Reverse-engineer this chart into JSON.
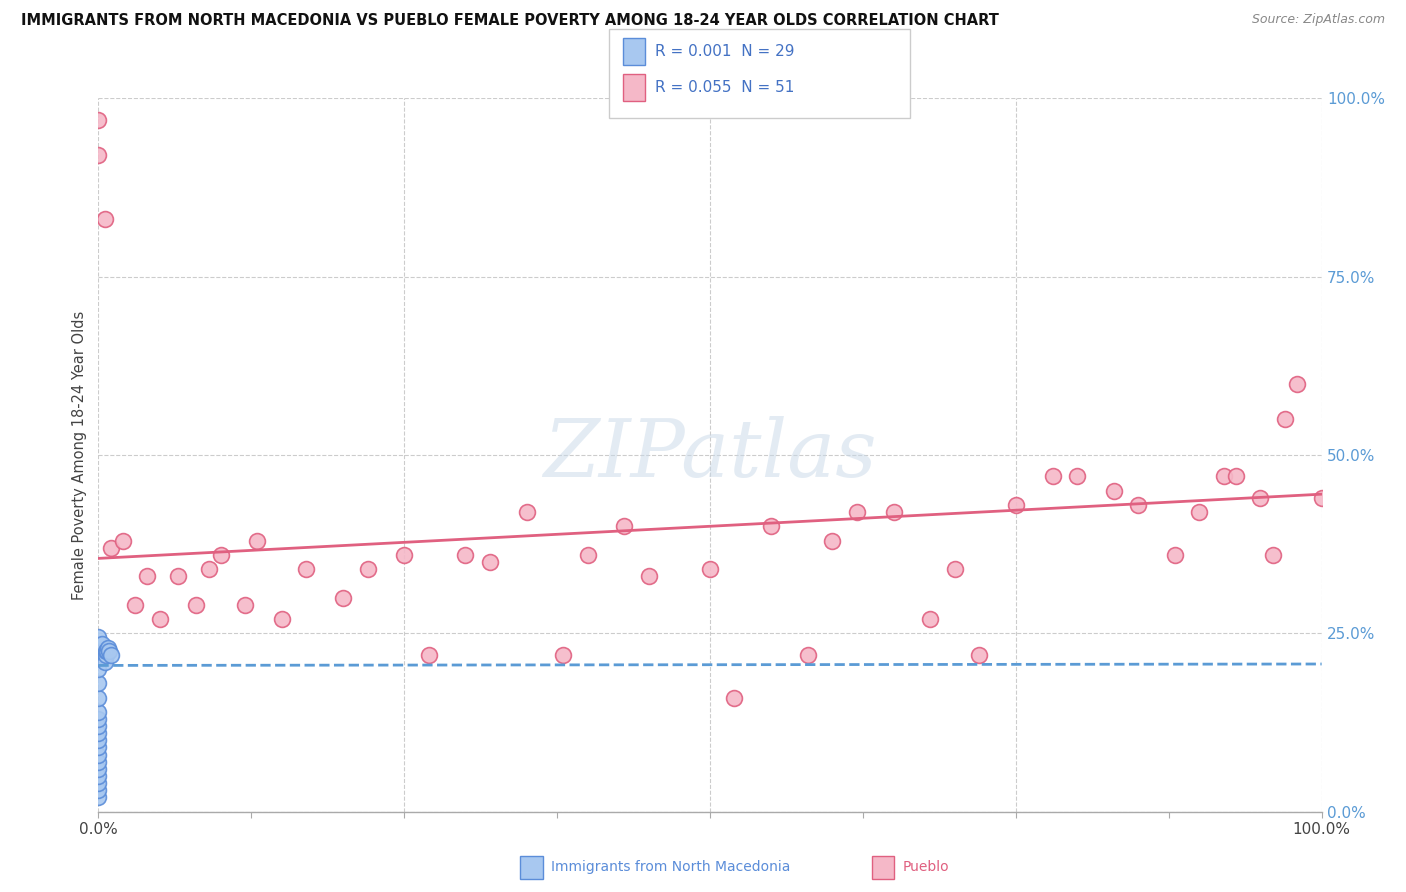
{
  "title": "IMMIGRANTS FROM NORTH MACEDONIA VS PUEBLO FEMALE POVERTY AMONG 18-24 YEAR OLDS CORRELATION CHART",
  "source": "Source: ZipAtlas.com",
  "ylabel": "Female Poverty Among 18-24 Year Olds",
  "legend_label1": "Immigrants from North Macedonia",
  "legend_label2": "Pueblo",
  "color_blue_fill": "#A8C8F0",
  "color_blue_edge": "#5B8DD9",
  "color_pink_fill": "#F5B8C8",
  "color_pink_edge": "#E06080",
  "color_line_blue": "#5B9BD5",
  "color_line_pink": "#E05878",
  "watermark_color": "#C8D8E8",
  "grid_color": "#CCCCCC",
  "background_color": "#FFFFFF",
  "xlim": [
    0.0,
    1.0
  ],
  "ylim": [
    0.0,
    1.0
  ],
  "blue_x": [
    0.0,
    0.0,
    0.0,
    0.0,
    0.0,
    0.0,
    0.0,
    0.0,
    0.0,
    0.0,
    0.0,
    0.0,
    0.0,
    0.0,
    0.0,
    0.0,
    0.0,
    0.0,
    0.0,
    0.0,
    0.003,
    0.003,
    0.005,
    0.006,
    0.006,
    0.007,
    0.008,
    0.009,
    0.01
  ],
  "blue_y": [
    0.02,
    0.03,
    0.04,
    0.05,
    0.06,
    0.07,
    0.08,
    0.09,
    0.1,
    0.11,
    0.12,
    0.13,
    0.14,
    0.16,
    0.18,
    0.2,
    0.215,
    0.225,
    0.235,
    0.245,
    0.22,
    0.235,
    0.21,
    0.22,
    0.225,
    0.225,
    0.23,
    0.225,
    0.22
  ],
  "pink_x": [
    0.0,
    0.0,
    0.005,
    0.01,
    0.02,
    0.03,
    0.04,
    0.05,
    0.065,
    0.08,
    0.09,
    0.1,
    0.12,
    0.13,
    0.15,
    0.17,
    0.2,
    0.22,
    0.25,
    0.27,
    0.3,
    0.32,
    0.35,
    0.38,
    0.4,
    0.43,
    0.45,
    0.5,
    0.52,
    0.55,
    0.58,
    0.6,
    0.62,
    0.65,
    0.68,
    0.7,
    0.72,
    0.75,
    0.78,
    0.8,
    0.83,
    0.85,
    0.88,
    0.9,
    0.92,
    0.93,
    0.95,
    0.96,
    0.97,
    0.98,
    1.0
  ],
  "pink_y": [
    0.97,
    0.92,
    0.83,
    0.37,
    0.38,
    0.29,
    0.33,
    0.27,
    0.33,
    0.29,
    0.34,
    0.36,
    0.29,
    0.38,
    0.27,
    0.34,
    0.3,
    0.34,
    0.36,
    0.22,
    0.36,
    0.35,
    0.42,
    0.22,
    0.36,
    0.4,
    0.33,
    0.34,
    0.16,
    0.4,
    0.22,
    0.38,
    0.42,
    0.42,
    0.27,
    0.34,
    0.22,
    0.43,
    0.47,
    0.47,
    0.45,
    0.43,
    0.36,
    0.42,
    0.47,
    0.47,
    0.44,
    0.36,
    0.55,
    0.6,
    0.44
  ],
  "blue_trend_start_y": 0.205,
  "blue_trend_end_y": 0.207,
  "pink_trend_start_y": 0.355,
  "pink_trend_end_y": 0.445,
  "right_ytick_labels": [
    "0.0%",
    "25.0%",
    "50.0%",
    "75.0%",
    "100.0%"
  ],
  "right_ytick_vals": [
    0.0,
    0.25,
    0.5,
    0.75,
    1.0
  ],
  "xtick_labels": [
    "0.0%",
    "100.0%"
  ],
  "xtick_vals": [
    0.0,
    1.0
  ]
}
